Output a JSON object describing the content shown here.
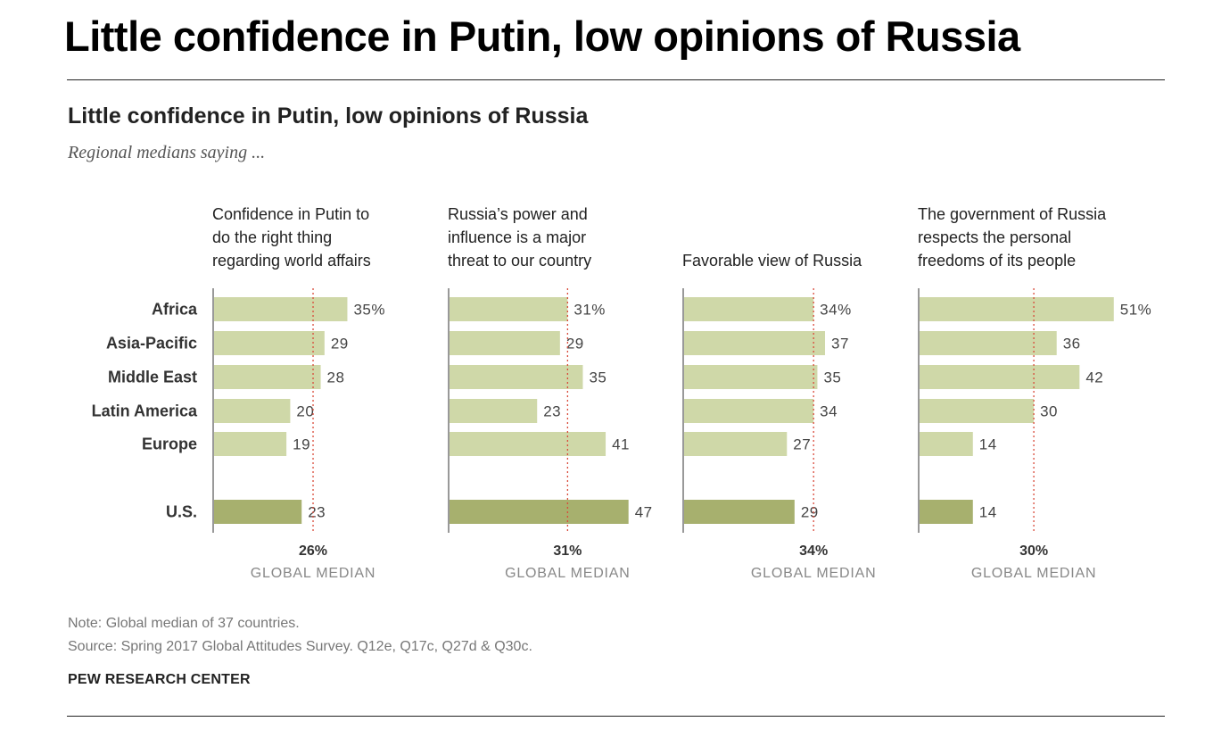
{
  "page_title": "Little confidence in Putin, low opinions of Russia",
  "chart_data": {
    "type": "bar",
    "title": "Little confidence in Putin, low opinions of Russia",
    "subtitle": "Regional medians saying ...",
    "categories": [
      "Africa",
      "Asia-Pacific",
      "Middle East",
      "Latin America",
      "Europe",
      "U.S."
    ],
    "panels": [
      {
        "name_lines": [
          "Confidence in Putin to",
          "do the right thing",
          "regarding world affairs"
        ],
        "values": [
          35,
          29,
          28,
          20,
          19,
          23
        ],
        "labels": [
          "35%",
          "29",
          "28",
          "20",
          "19",
          "23"
        ],
        "global_median": 26,
        "global_median_label": "26%"
      },
      {
        "name_lines": [
          "Russia’s power and",
          "influence is a major",
          "threat to our country"
        ],
        "values": [
          31,
          29,
          35,
          23,
          41,
          47
        ],
        "labels": [
          "31%",
          "29",
          "35",
          "23",
          "41",
          "47"
        ],
        "global_median": 31,
        "global_median_label": "31%"
      },
      {
        "name_lines": [
          "Favorable view of Russia"
        ],
        "values": [
          34,
          37,
          35,
          34,
          27,
          29
        ],
        "labels": [
          "34%",
          "37",
          "35",
          "34",
          "27",
          "29"
        ],
        "global_median": 34,
        "global_median_label": "34%"
      },
      {
        "name_lines": [
          "The government of Russia",
          "respects the personal",
          "freedoms of its people"
        ],
        "values": [
          51,
          36,
          42,
          30,
          14,
          14
        ],
        "labels": [
          "51%",
          "36",
          "42",
          "30",
          "14",
          "14"
        ],
        "global_median": 30,
        "global_median_label": "30%"
      }
    ],
    "median_caption": "GLOBAL MEDIAN",
    "xlim": [
      0,
      55
    ],
    "grid": false,
    "colors": {
      "region_bar": "#cfd8a8",
      "us_bar": "#a7b06e",
      "median_line": "#d94a3a",
      "axis": "#999999",
      "category_text": "#333333",
      "value_text": "#444444",
      "caption_text": "#888888"
    }
  },
  "notes": {
    "note": "Note: Global median of 37 countries.",
    "source": "Source: Spring 2017 Global Attitudes Survey. Q12e, Q17c, Q27d & Q30c."
  },
  "org": "PEW RESEARCH CENTER"
}
